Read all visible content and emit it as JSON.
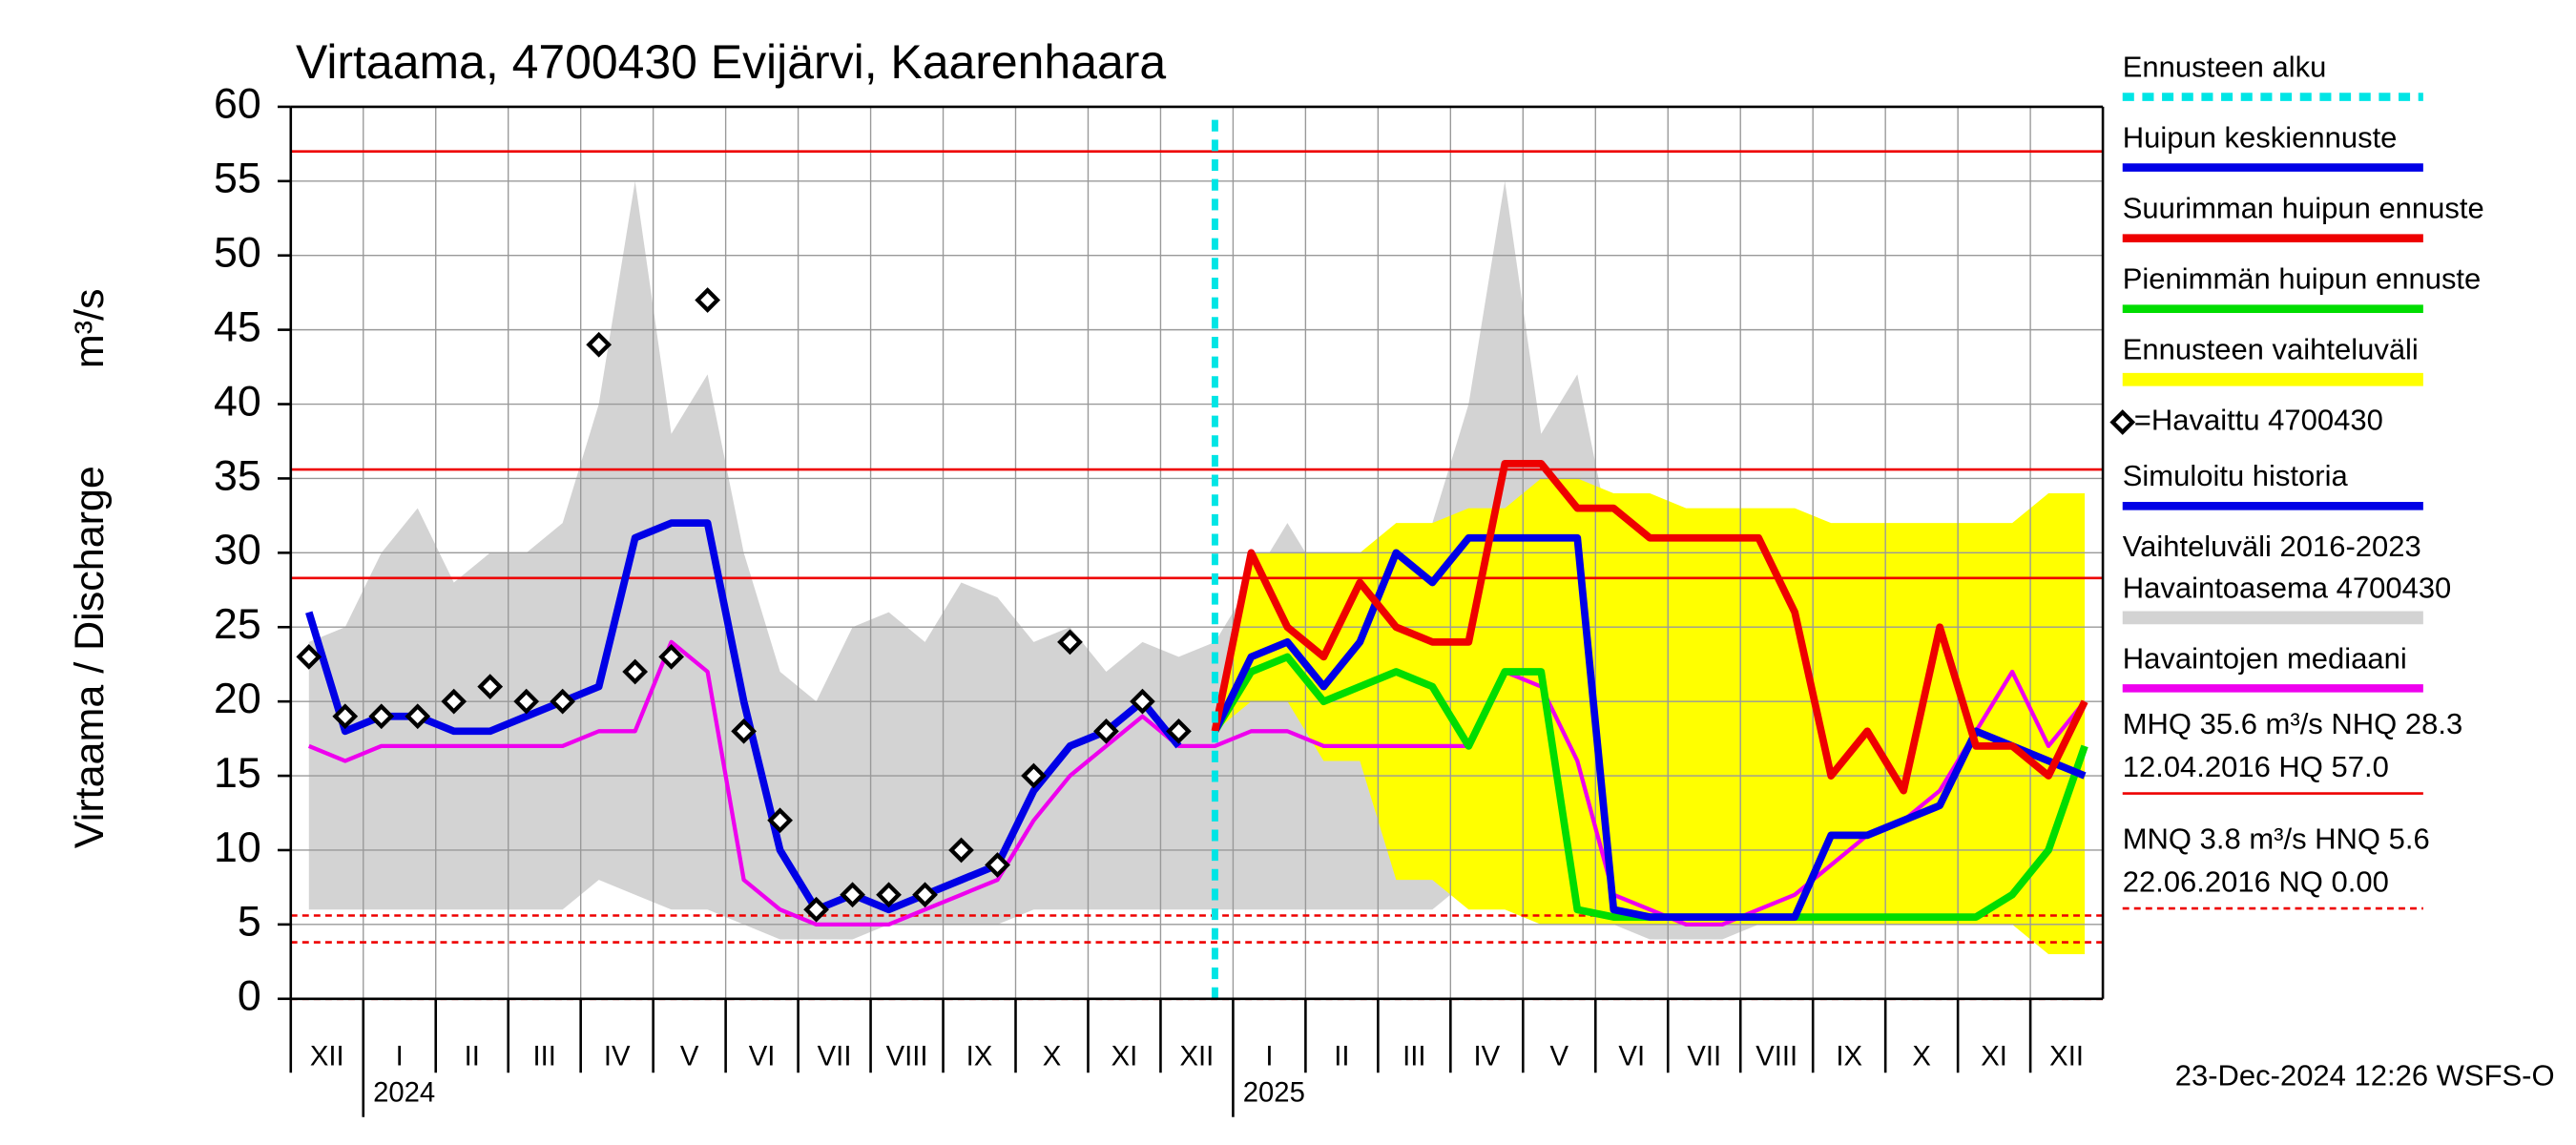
{
  "chart_data": {
    "type": "line",
    "title": "Virtaama, 4700430 Evijärvi, Kaarenhaara",
    "y_label": "Virtaama / Discharge",
    "y_unit": "m³/s",
    "ylim": [
      0,
      60
    ],
    "yticks": [
      0,
      5,
      10,
      15,
      20,
      25,
      30,
      35,
      40,
      45,
      50,
      55,
      60
    ],
    "grid": true,
    "months": [
      "XII",
      "I",
      "II",
      "III",
      "IV",
      "V",
      "VI",
      "VII",
      "VIII",
      "IX",
      "X",
      "XI",
      "XII",
      "I",
      "II",
      "III",
      "IV",
      "V",
      "VI",
      "VII",
      "VIII",
      "IX",
      "X",
      "XI",
      "XII"
    ],
    "years": [
      "2024",
      "2025"
    ],
    "forecast_start_label": "Ennusteen alku",
    "forecast_start_color": "#00e5e5",
    "reference_lines": [
      {
        "value": 57.0,
        "style": "solid"
      },
      {
        "value": 35.6,
        "style": "solid"
      },
      {
        "value": 28.3,
        "style": "solid"
      },
      {
        "value": 5.6,
        "style": "dashed"
      },
      {
        "value": 3.8,
        "style": "dashed"
      },
      {
        "value": 0.0,
        "style": "dashed"
      }
    ],
    "series": [
      {
        "name": "Huipun keskiennuste",
        "color": "#0000e6",
        "kind": "line",
        "values": [
          null,
          null,
          null,
          null,
          null,
          null,
          null,
          null,
          null,
          null,
          null,
          null,
          null,
          null,
          null,
          null,
          null,
          null,
          null,
          null,
          null,
          null,
          null,
          null,
          null,
          18,
          23,
          24,
          21,
          24,
          30,
          28,
          31,
          31,
          31,
          31,
          6,
          5.5,
          5.5,
          5.5,
          5.5,
          5.5,
          11,
          11,
          12,
          13,
          18,
          17,
          16,
          15
        ]
      },
      {
        "name": "Suurimman huipun ennuste",
        "color": "#ee0000",
        "kind": "line",
        "values": [
          null,
          null,
          null,
          null,
          null,
          null,
          null,
          null,
          null,
          null,
          null,
          null,
          null,
          null,
          null,
          null,
          null,
          null,
          null,
          null,
          null,
          null,
          null,
          null,
          null,
          18,
          30,
          25,
          23,
          28,
          25,
          24,
          24,
          36,
          36,
          33,
          33,
          31,
          31,
          31,
          31,
          26,
          15,
          18,
          14,
          25,
          17,
          17,
          15,
          20
        ]
      },
      {
        "name": "Pienimmän huipun ennuste",
        "color": "#00dd00",
        "kind": "line",
        "values": [
          null,
          null,
          null,
          null,
          null,
          null,
          null,
          null,
          null,
          null,
          null,
          null,
          null,
          null,
          null,
          null,
          null,
          null,
          null,
          null,
          null,
          null,
          null,
          null,
          null,
          18,
          22,
          23,
          20,
          21,
          22,
          21,
          17,
          22,
          22,
          6,
          5.5,
          5.5,
          5.5,
          5.5,
          5.5,
          5.5,
          5.5,
          5.5,
          5.5,
          5.5,
          5.5,
          7,
          10,
          17
        ]
      },
      {
        "name": "Ennusteen vaihteluväli",
        "color": "#ffff00",
        "kind": "band",
        "low": [
          null,
          null,
          null,
          null,
          null,
          null,
          null,
          null,
          null,
          null,
          null,
          null,
          null,
          null,
          null,
          null,
          null,
          null,
          null,
          null,
          null,
          null,
          null,
          null,
          null,
          18,
          20,
          20,
          16,
          16,
          8,
          8,
          6,
          6,
          5,
          5,
          5,
          5,
          5,
          5,
          5,
          5,
          5,
          5,
          5,
          5,
          5,
          5,
          3,
          3
        ],
        "high": [
          null,
          null,
          null,
          null,
          null,
          null,
          null,
          null,
          null,
          null,
          null,
          null,
          null,
          null,
          null,
          null,
          null,
          null,
          null,
          null,
          null,
          null,
          null,
          null,
          null,
          18,
          30,
          30,
          30,
          30,
          32,
          32,
          33,
          33,
          35,
          35,
          34,
          34,
          33,
          33,
          33,
          33,
          32,
          32,
          32,
          32,
          32,
          32,
          34,
          34
        ]
      },
      {
        "name": "=Havaittu 4700430",
        "color": "#000000",
        "kind": "scatter",
        "values": [
          23,
          19,
          19,
          19,
          20,
          21,
          20,
          20,
          44,
          22,
          23,
          47,
          18,
          12,
          6,
          7,
          7,
          7,
          10,
          9,
          15,
          24,
          18,
          20,
          18,
          null,
          null,
          null,
          null,
          null,
          null,
          null,
          null,
          null,
          null,
          null,
          null,
          null,
          null,
          null,
          null,
          null,
          null,
          null,
          null,
          null,
          null,
          null,
          null,
          null
        ]
      },
      {
        "name": "Simuloitu historia",
        "color": "#0000e6",
        "kind": "line",
        "values": [
          26,
          18,
          19,
          19,
          18,
          18,
          19,
          20,
          21,
          31,
          32,
          32,
          20,
          10,
          6,
          7,
          6,
          7,
          8,
          9,
          14,
          17,
          18,
          20,
          17,
          null,
          null,
          null,
          null,
          null,
          null,
          null,
          null,
          null,
          null,
          null,
          null,
          null,
          null,
          null,
          null,
          null,
          null,
          null,
          null,
          null,
          null,
          null,
          null,
          null
        ]
      },
      {
        "name": [
          "Vaihteluväli 2016-2023",
          " Havaintoasema 4700430"
        ],
        "color": "#d3d3d3",
        "kind": "band",
        "low": [
          6,
          6,
          6,
          6,
          6,
          6,
          6,
          6,
          8,
          7,
          6,
          6,
          5,
          4,
          4,
          4,
          5,
          5,
          5,
          5,
          6,
          6,
          6,
          6,
          6,
          6,
          6,
          6,
          6,
          6,
          6,
          6,
          8,
          7,
          6,
          6,
          5,
          4,
          4,
          4,
          5,
          5,
          5,
          5,
          6,
          6,
          6,
          6,
          6,
          6
        ],
        "high": [
          24,
          25,
          30,
          33,
          28,
          30,
          30,
          32,
          40,
          55,
          38,
          42,
          30,
          22,
          20,
          25,
          26,
          24,
          28,
          27,
          24,
          25,
          22,
          24,
          23,
          24,
          28,
          32,
          28,
          30,
          30,
          32,
          40,
          55,
          38,
          42,
          30,
          22,
          20,
          25,
          26,
          24,
          28,
          27,
          24,
          25,
          22,
          24,
          23,
          24
        ]
      },
      {
        "name": "Havaintojen mediaani",
        "color": "#ee00ee",
        "kind": "line",
        "values": [
          17,
          16,
          17,
          17,
          17,
          17,
          17,
          17,
          18,
          18,
          24,
          22,
          8,
          6,
          5,
          5,
          5,
          6,
          7,
          8,
          12,
          15,
          17,
          19,
          17,
          17,
          18,
          18,
          17,
          17,
          17,
          17,
          17,
          22,
          21,
          16,
          7,
          6,
          5,
          5,
          6,
          7,
          9,
          11,
          12,
          14,
          18,
          22,
          17,
          20
        ]
      }
    ],
    "stats": [
      "MHQ 35.6 m³/s NHQ 28.3",
      "12.04.2016 HQ 57.0",
      "MNQ  3.8 m³/s HNQ  5.6",
      "22.06.2016 NQ 0.00"
    ],
    "reference_color": "#ee0000",
    "footer": "23-Dec-2024 12:26 WSFS-O"
  }
}
